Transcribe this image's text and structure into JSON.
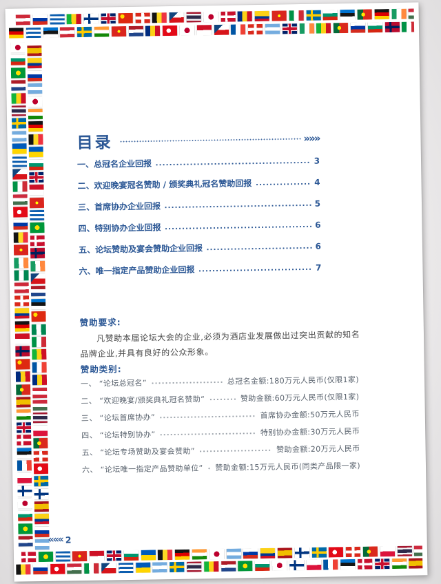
{
  "page": {
    "title": "目录",
    "title_arrows": "»»»",
    "page_number_arrows": "«««",
    "page_number": "2"
  },
  "toc": {
    "items": [
      {
        "label": "一、总冠名企业回报",
        "page": "3"
      },
      {
        "label": "二、欢迎晚宴冠名赞助 / 颁奖典礼冠名赞助回报",
        "page": "4"
      },
      {
        "label": "三、首席协办企业回报",
        "page": "5"
      },
      {
        "label": "四、特别协办企业回报",
        "page": "6"
      },
      {
        "label": "五、论坛赞助及宴会赞助企业回报",
        "page": "6"
      },
      {
        "label": "六、唯一指定产品赞助企业回报",
        "page": "7"
      }
    ]
  },
  "requirements": {
    "heading": "赞助要求:",
    "body": "凡赞助本届论坛大会的企业,必须为酒店业发展做出过突出贡献的知名品牌企业,并具有良好的公众形象。"
  },
  "categories": {
    "heading": "赞助类别:",
    "items": [
      {
        "label": "一、 “论坛总冠名”",
        "amount": "总冠名金额:180万元人民币(仅限1家)"
      },
      {
        "label": "二、 “欢迎晚宴/颁奖典礼冠名赞助”",
        "amount": "赞助金额:60万元人民币(仅限1家)"
      },
      {
        "label": "三、 “论坛首席协办”",
        "amount": "首席协办金额:50万元人民币"
      },
      {
        "label": "四、 “论坛特别协办”",
        "amount": "特别协办金额:30万元人民币"
      },
      {
        "label": "五、 “论坛专场赞助及宴会赞助”",
        "amount": "赞助金额:20万元人民币"
      },
      {
        "label": "六、 “论坛唯一指定产品赞助单位”",
        "amount": "赞助金额:15万元人民币(同类产品限一家)"
      }
    ]
  },
  "colors": {
    "accent_blue": "#2b5795",
    "body_text": "#474747",
    "category_text": "#59626d",
    "page_bg": "#e5e3e4",
    "sheet_bg": "#ffffff"
  },
  "flag_border": {
    "icon": "world-flags-border",
    "flag_styles": [
      "linear-gradient(180deg,#ce2939 33%,#ffffff 33% 66%,#ce2939 66%)",
      "linear-gradient(180deg,#005bbb 50%,#ffd500 50%)",
      "linear-gradient(90deg,#0055a4 33%,#ffffff 33% 66%,#ef4135 66%)",
      "linear-gradient(180deg,#141414 33%,#dd0000 33% 66%,#ffce00 66%)",
      "linear-gradient(90deg,#009246 33%,#ffffff 33% 66%,#ce2b37 66%)",
      "radial-gradient(circle at 50% 50%,#bc002d 30%,#ffffff 31%)",
      "radial-gradient(circle at 28% 32%,#ffde00 16%,rgba(0,0,0,0) 17%),linear-gradient(#de2910,#de2910)",
      "linear-gradient(180deg,#ffffff 33%,#0039a6 33% 66%,#d52b1e 66%)",
      "linear-gradient(180deg,#ae1c28 33%,#ffffff 33% 66%,#21468b 66%)",
      "linear-gradient(180deg,#aa151b 25%,#f1bf00 25% 75%,#aa151b 75%)",
      "linear-gradient(90deg,#169b62 33%,#ffffff 33% 66%,#ff883e 66%)",
      "linear-gradient(90deg,rgba(0,0,0,0) 30%,#fecc00 30% 45%,rgba(0,0,0,0) 45%),linear-gradient(180deg,#006aa7 38%,#fecc00 38% 62%,#006aa7 62%)",
      "linear-gradient(90deg,rgba(0,0,0,0) 30%,#ffffff 30% 45%,rgba(0,0,0,0) 45%),linear-gradient(180deg,#c8102e 38%,#ffffff 38% 62%,#c8102e 62%)",
      "linear-gradient(90deg,rgba(0,0,0,0) 40%,#ffffff 40% 60%,rgba(0,0,0,0) 60%),linear-gradient(180deg,#da291c 36%,#ffffff 36% 64%,#da291c 64%)",
      "repeating-linear-gradient(180deg,#0d5eaf 0 3px,#ffffff 3px 6px)",
      "linear-gradient(180deg,#ffffff 50%,#dc143c 50%)",
      "linear-gradient(180deg,#ce1126 50%,#ffffff 50%)",
      "linear-gradient(180deg,#cd2a3e 33%,#ffffff 33% 66%,#436f4d 66%)",
      "linear-gradient(180deg,#ffffff 33%,#00966e 33% 66%,#d62612 66%)",
      "linear-gradient(90deg,#002b7f 33%,#fcd116 33% 66%,#ce1126 66%)",
      "linear-gradient(90deg,#141414 33%,#fdda24 33% 66%,#ef3340 66%)",
      "linear-gradient(90deg,#14b53a 33%,#fcd116 33% 66%,#ce1126 66%)",
      "linear-gradient(180deg,#ff9933 33%,#ffffff 33% 66%,#138808 66%)",
      "linear-gradient(90deg,#008751 33%,#ffffff 33% 66%,#008751 66%)",
      "linear-gradient(180deg,#74acdf 33%,#ffffff 33% 66%,#74acdf 66%)",
      "linear-gradient(180deg,#0072ce 33%,#141414 33% 66%,#ffffff 66%)",
      "linear-gradient(180deg,#fcd116 50%,#003893 50% 75%,#ce1126 75%)",
      "linear-gradient(135deg,#11457e 35%,rgba(0,0,0,0) 35%),linear-gradient(180deg,#ffffff 50%,#d7141a 50%)",
      "linear-gradient(90deg,rgba(0,0,0,0) 30%,#003580 30% 45%,rgba(0,0,0,0) 45%),linear-gradient(180deg,#ffffff 38%,#003580 38% 62%,#ffffff 62%)",
      "linear-gradient(90deg,rgba(0,0,0,0) 30%,#00205b 30% 44%,rgba(0,0,0,0) 44%),linear-gradient(180deg,#ba0c2f 38%,#00205b 38% 62%,#ba0c2f 62%)",
      "radial-gradient(circle at 42% 50%,#ffffff 22%,rgba(0,0,0,0) 23%),linear-gradient(#e30a17,#e30a17)",
      "radial-gradient(circle at 50% 50%,#ffdf00 26%,rgba(0,0,0,0) 27%),linear-gradient(#009739,#009739)",
      "radial-gradient(circle at 40% 50%,#ffe900 18%,rgba(0,0,0,0) 19%),linear-gradient(90deg,#046a38 40%,#da291c 40%)",
      "radial-gradient(circle at 50% 50%,#ffff00 15%,rgba(0,0,0,0) 16%),linear-gradient(#da251d,#da251d)",
      "linear-gradient(180deg,#a51931 17%,#f4f5f8 17% 33%,#2d2a4a 33% 67%,#f4f5f8 67% 83%,#a51931 83%)",
      "linear-gradient(90deg,rgba(0,0,0,0) 42%,#c8102e 42% 58%,rgba(0,0,0,0) 58%),linear-gradient(180deg,rgba(0,0,0,0) 36%,#c8102e 36% 64%,rgba(0,0,0,0) 64%),linear-gradient(90deg,rgba(0,0,0,0) 36%,#ffffff 36% 64%,rgba(0,0,0,0) 64%),linear-gradient(180deg,rgba(0,0,0,0) 28%,#ffffff 28% 72%,rgba(0,0,0,0) 72%),linear-gradient(#012169,#012169)"
    ]
  }
}
